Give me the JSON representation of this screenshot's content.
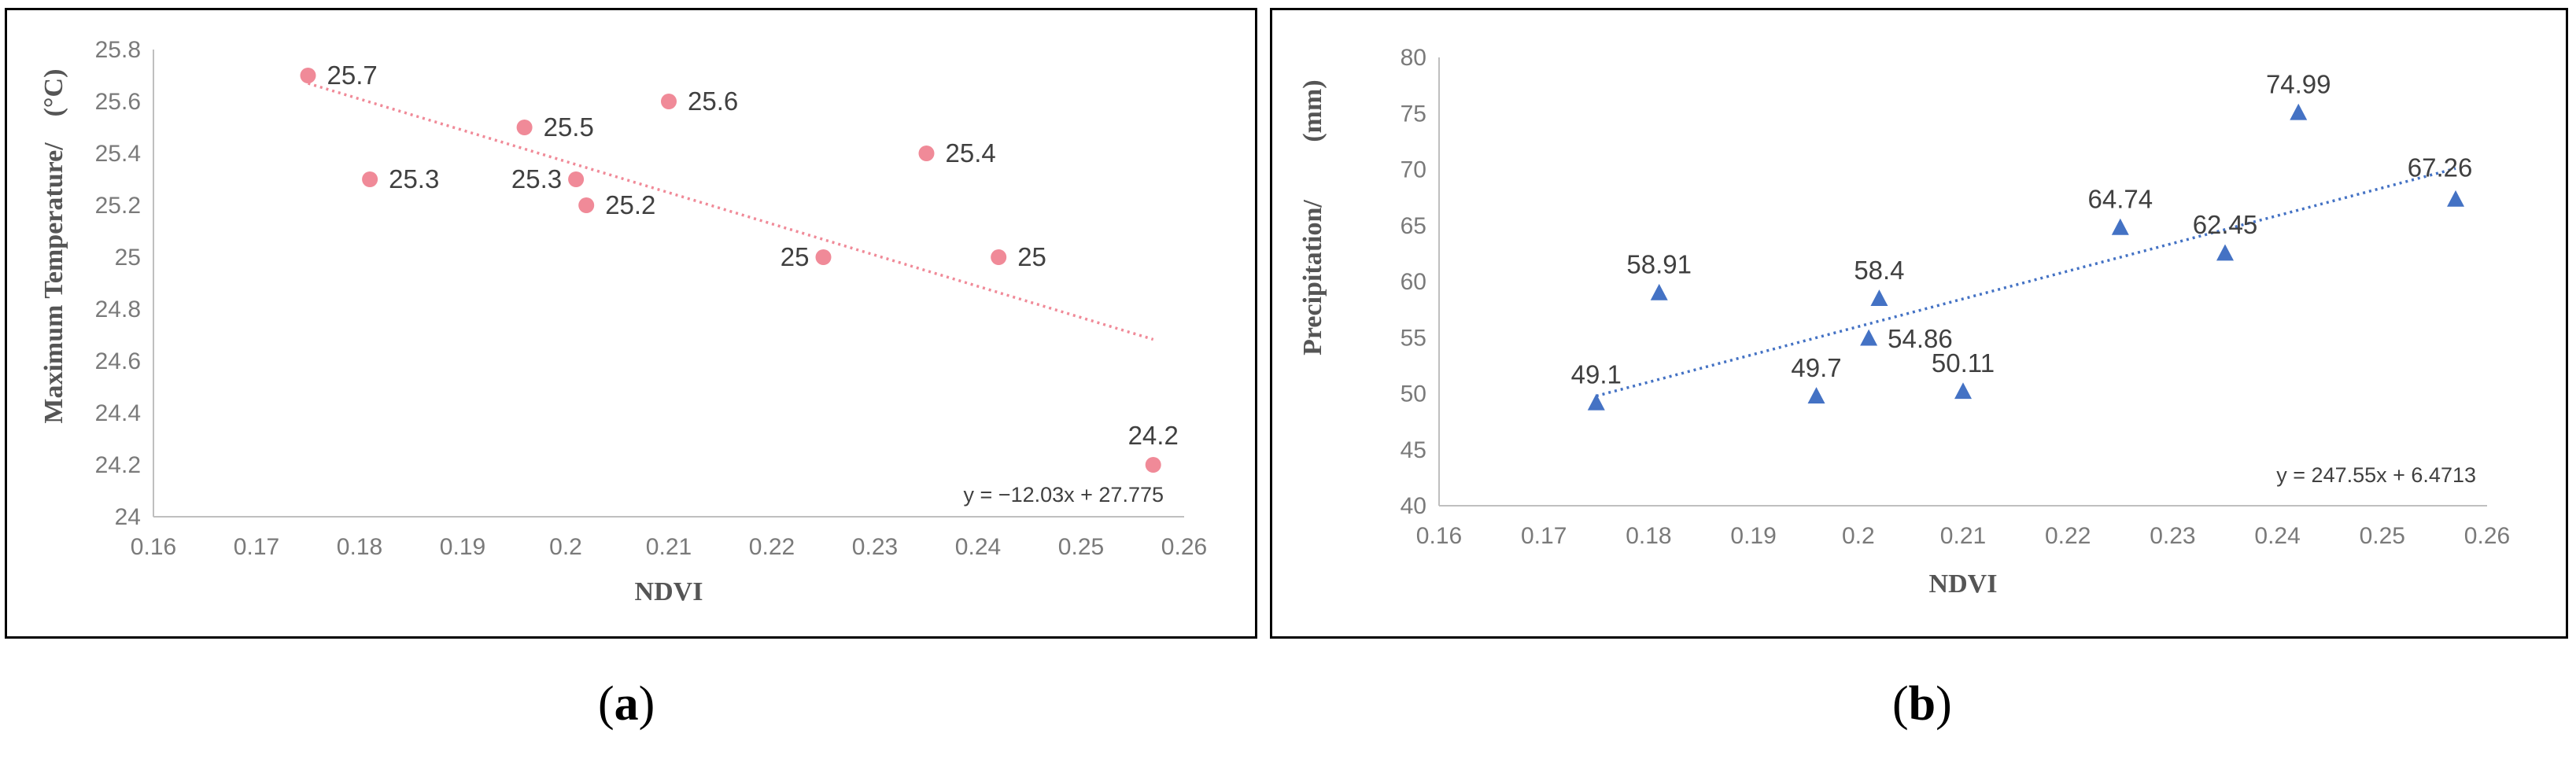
{
  "captions": {
    "a": "a",
    "b": "b"
  },
  "chart_data": [
    {
      "type": "scatter",
      "id": "a",
      "xlabel": "NDVI",
      "ylabel": "Maximum Temperature/",
      "ylabel_unit": "(°C)",
      "xlim": [
        0.16,
        0.26
      ],
      "ylim": [
        24,
        25.8
      ],
      "xticks": [
        0.16,
        0.17,
        0.18,
        0.19,
        0.2,
        0.21,
        0.22,
        0.23,
        0.24,
        0.25,
        0.26
      ],
      "yticks": [
        24,
        24.2,
        24.4,
        24.6,
        24.8,
        25,
        25.2,
        25.4,
        25.6,
        25.8
      ],
      "xtick_labels": [
        "0.16",
        "0.17",
        "0.18",
        "0.19",
        "0.2",
        "0.21",
        "0.22",
        "0.23",
        "0.24",
        "0.25",
        "0.26"
      ],
      "ytick_labels": [
        "24",
        "24.2",
        "24.4",
        "24.6",
        "24.8",
        "25",
        "25.2",
        "25.4",
        "25.6",
        "25.8"
      ],
      "color": "#f08a98",
      "marker": "circle",
      "points": [
        {
          "x": 0.175,
          "y": 25.7,
          "label": "25.7",
          "pos": "right"
        },
        {
          "x": 0.181,
          "y": 25.3,
          "label": "25.3",
          "pos": "right"
        },
        {
          "x": 0.196,
          "y": 25.5,
          "label": "25.5",
          "pos": "right"
        },
        {
          "x": 0.201,
          "y": 25.3,
          "label": "25.3",
          "pos": "left"
        },
        {
          "x": 0.202,
          "y": 25.2,
          "label": "25.2",
          "pos": "right"
        },
        {
          "x": 0.21,
          "y": 25.6,
          "label": "25.6",
          "pos": "right"
        },
        {
          "x": 0.225,
          "y": 25.0,
          "label": "25",
          "pos": "left"
        },
        {
          "x": 0.235,
          "y": 25.4,
          "label": "25.4",
          "pos": "right"
        },
        {
          "x": 0.242,
          "y": 25.0,
          "label": "25",
          "pos": "right"
        },
        {
          "x": 0.257,
          "y": 24.2,
          "label": "24.2",
          "pos": "above"
        }
      ],
      "trendline": {
        "slope": -12.03,
        "intercept": 27.775,
        "x_range": [
          0.175,
          0.257
        ],
        "equation": "y = −12.03x + 27.775"
      }
    },
    {
      "type": "scatter",
      "id": "b",
      "xlabel": "NDVI",
      "ylabel": "Precipitation/",
      "ylabel_unit": "(mm)",
      "xlim": [
        0.16,
        0.26
      ],
      "ylim": [
        40,
        80
      ],
      "xticks": [
        0.16,
        0.17,
        0.18,
        0.19,
        0.2,
        0.21,
        0.22,
        0.23,
        0.24,
        0.25,
        0.26
      ],
      "yticks": [
        40,
        45,
        50,
        55,
        60,
        65,
        70,
        75,
        80
      ],
      "xtick_labels": [
        "0.16",
        "0.17",
        "0.18",
        "0.19",
        "0.2",
        "0.21",
        "0.22",
        "0.23",
        "0.24",
        "0.25",
        "0.26"
      ],
      "ytick_labels": [
        "40",
        "45",
        "50",
        "55",
        "60",
        "65",
        "70",
        "75",
        "80"
      ],
      "color": "#4472c4",
      "marker": "triangle",
      "points": [
        {
          "x": 0.175,
          "y": 49.1,
          "label": "49.1",
          "pos": "above"
        },
        {
          "x": 0.181,
          "y": 58.91,
          "label": "58.91",
          "pos": "above"
        },
        {
          "x": 0.196,
          "y": 49.7,
          "label": "49.7",
          "pos": "above"
        },
        {
          "x": 0.201,
          "y": 54.86,
          "label": "54.86",
          "pos": "right"
        },
        {
          "x": 0.202,
          "y": 58.4,
          "label": "58.4",
          "pos": "above"
        },
        {
          "x": 0.21,
          "y": 50.11,
          "label": "50.11",
          "pos": "above"
        },
        {
          "x": 0.225,
          "y": 64.74,
          "label": "64.74",
          "pos": "above"
        },
        {
          "x": 0.235,
          "y": 62.45,
          "label": "62.45",
          "pos": "above"
        },
        {
          "x": 0.242,
          "y": 74.99,
          "label": "74.99",
          "pos": "above"
        },
        {
          "x": 0.257,
          "y": 67.26,
          "label": "67.26",
          "pos": "above-left"
        }
      ],
      "trendline": {
        "slope": 247.55,
        "intercept": 6.4713,
        "x_range": [
          0.175,
          0.257
        ],
        "equation": "y = 247.55x + 6.4713"
      }
    }
  ]
}
